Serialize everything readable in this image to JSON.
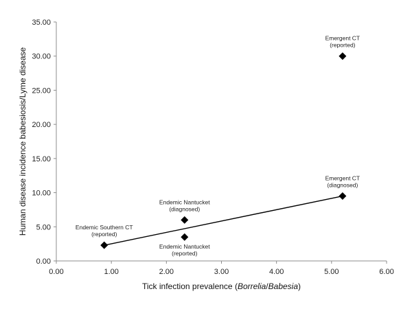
{
  "chart_data": {
    "type": "scatter",
    "xlabel": "Tick infection prevalence (Borrelia/Babesia)",
    "xlabel_parts": [
      {
        "text": "Tick infection prevalence (",
        "italic": false
      },
      {
        "text": "Borrelia",
        "italic": true
      },
      {
        "text": "/",
        "italic": false
      },
      {
        "text": "Babesia",
        "italic": true
      },
      {
        "text": ")",
        "italic": false
      }
    ],
    "ylabel": "Human disease incidence babesiosis/Lyme disease",
    "xlim": [
      0,
      6
    ],
    "ylim": [
      0,
      35
    ],
    "x_ticks": [
      "0.00",
      "1.00",
      "2.00",
      "3.00",
      "4.00",
      "5.00",
      "6.00"
    ],
    "y_ticks": [
      "0.00",
      "5.00",
      "10.00",
      "15.00",
      "20.00",
      "25.00",
      "30.00",
      "35.00"
    ],
    "x_tick_values": [
      0,
      1,
      2,
      3,
      4,
      5,
      6
    ],
    "y_tick_values": [
      0,
      5,
      10,
      15,
      20,
      25,
      30,
      35
    ],
    "grid": false,
    "marker": "diamond",
    "points": [
      {
        "x": 0.87,
        "y": 2.3,
        "label": [
          "Endemic Southern CT",
          "(reported)"
        ],
        "label_pos": "above"
      },
      {
        "x": 2.33,
        "y": 6.0,
        "label": [
          "Endemic Nantucket",
          "(diagnosed)"
        ],
        "label_pos": "above"
      },
      {
        "x": 2.33,
        "y": 3.5,
        "label": [
          "Endemic Nantucket",
          "(reported)"
        ],
        "label_pos": "below"
      },
      {
        "x": 5.2,
        "y": 9.5,
        "label": [
          "Emergent CT",
          "(diagnosed)"
        ],
        "label_pos": "above"
      },
      {
        "x": 5.2,
        "y": 30.0,
        "label": [
          "Emergent CT",
          "(reported)"
        ],
        "label_pos": "above"
      }
    ],
    "trendline": {
      "from": {
        "x": 0.87,
        "y": 2.3
      },
      "to": {
        "x": 5.2,
        "y": 9.5
      }
    }
  }
}
